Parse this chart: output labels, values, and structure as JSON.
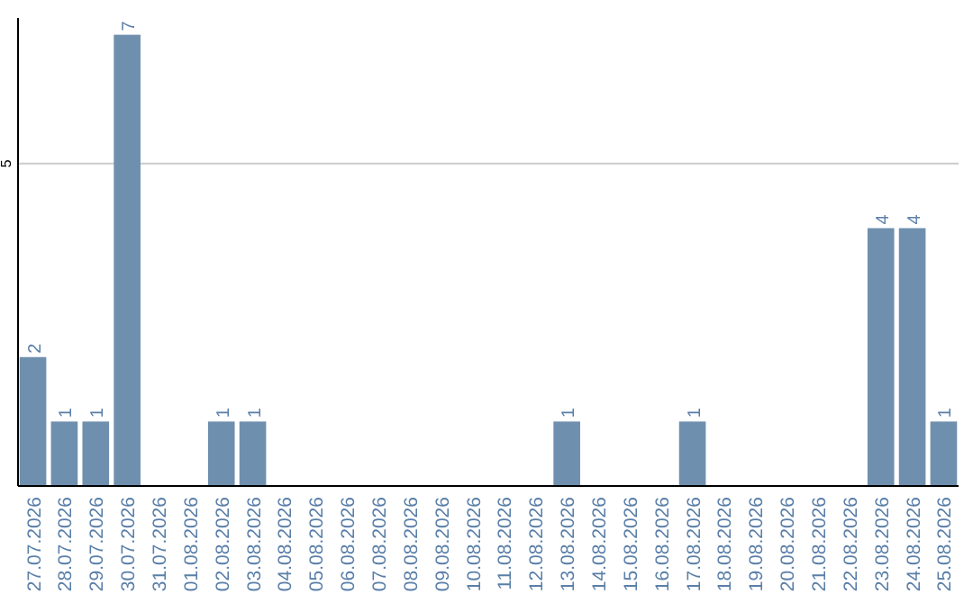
{
  "chart_data": {
    "type": "bar",
    "categories": [
      "27.07.2026",
      "28.07.2026",
      "29.07.2026",
      "30.07.2026",
      "31.07.2026",
      "01.08.2026",
      "02.08.2026",
      "03.08.2026",
      "04.08.2026",
      "05.08.2026",
      "06.08.2026",
      "07.08.2026",
      "08.08.2026",
      "09.08.2026",
      "10.08.2026",
      "11.08.2026",
      "12.08.2026",
      "13.08.2026",
      "14.08.2026",
      "15.08.2026",
      "16.08.2026",
      "17.08.2026",
      "18.08.2026",
      "19.08.2026",
      "20.08.2026",
      "21.08.2026",
      "22.08.2026",
      "23.08.2026",
      "24.08.2026",
      "25.08.2026"
    ],
    "values": [
      2,
      1,
      1,
      7,
      0,
      0,
      1,
      1,
      0,
      0,
      0,
      0,
      0,
      0,
      0,
      0,
      0,
      1,
      0,
      0,
      0,
      1,
      0,
      0,
      0,
      0,
      0,
      4,
      4,
      1
    ],
    "value_labels": [
      "2",
      "1",
      "1",
      "7",
      null,
      null,
      "1",
      "1",
      null,
      null,
      null,
      null,
      null,
      null,
      null,
      null,
      null,
      "1",
      null,
      null,
      null,
      "1",
      null,
      null,
      null,
      null,
      null,
      "4",
      "4",
      "1"
    ],
    "color": "#6f8fae",
    "ylim": [
      0,
      7.26
    ],
    "yticks": [
      5
    ],
    "grid": "y"
  }
}
